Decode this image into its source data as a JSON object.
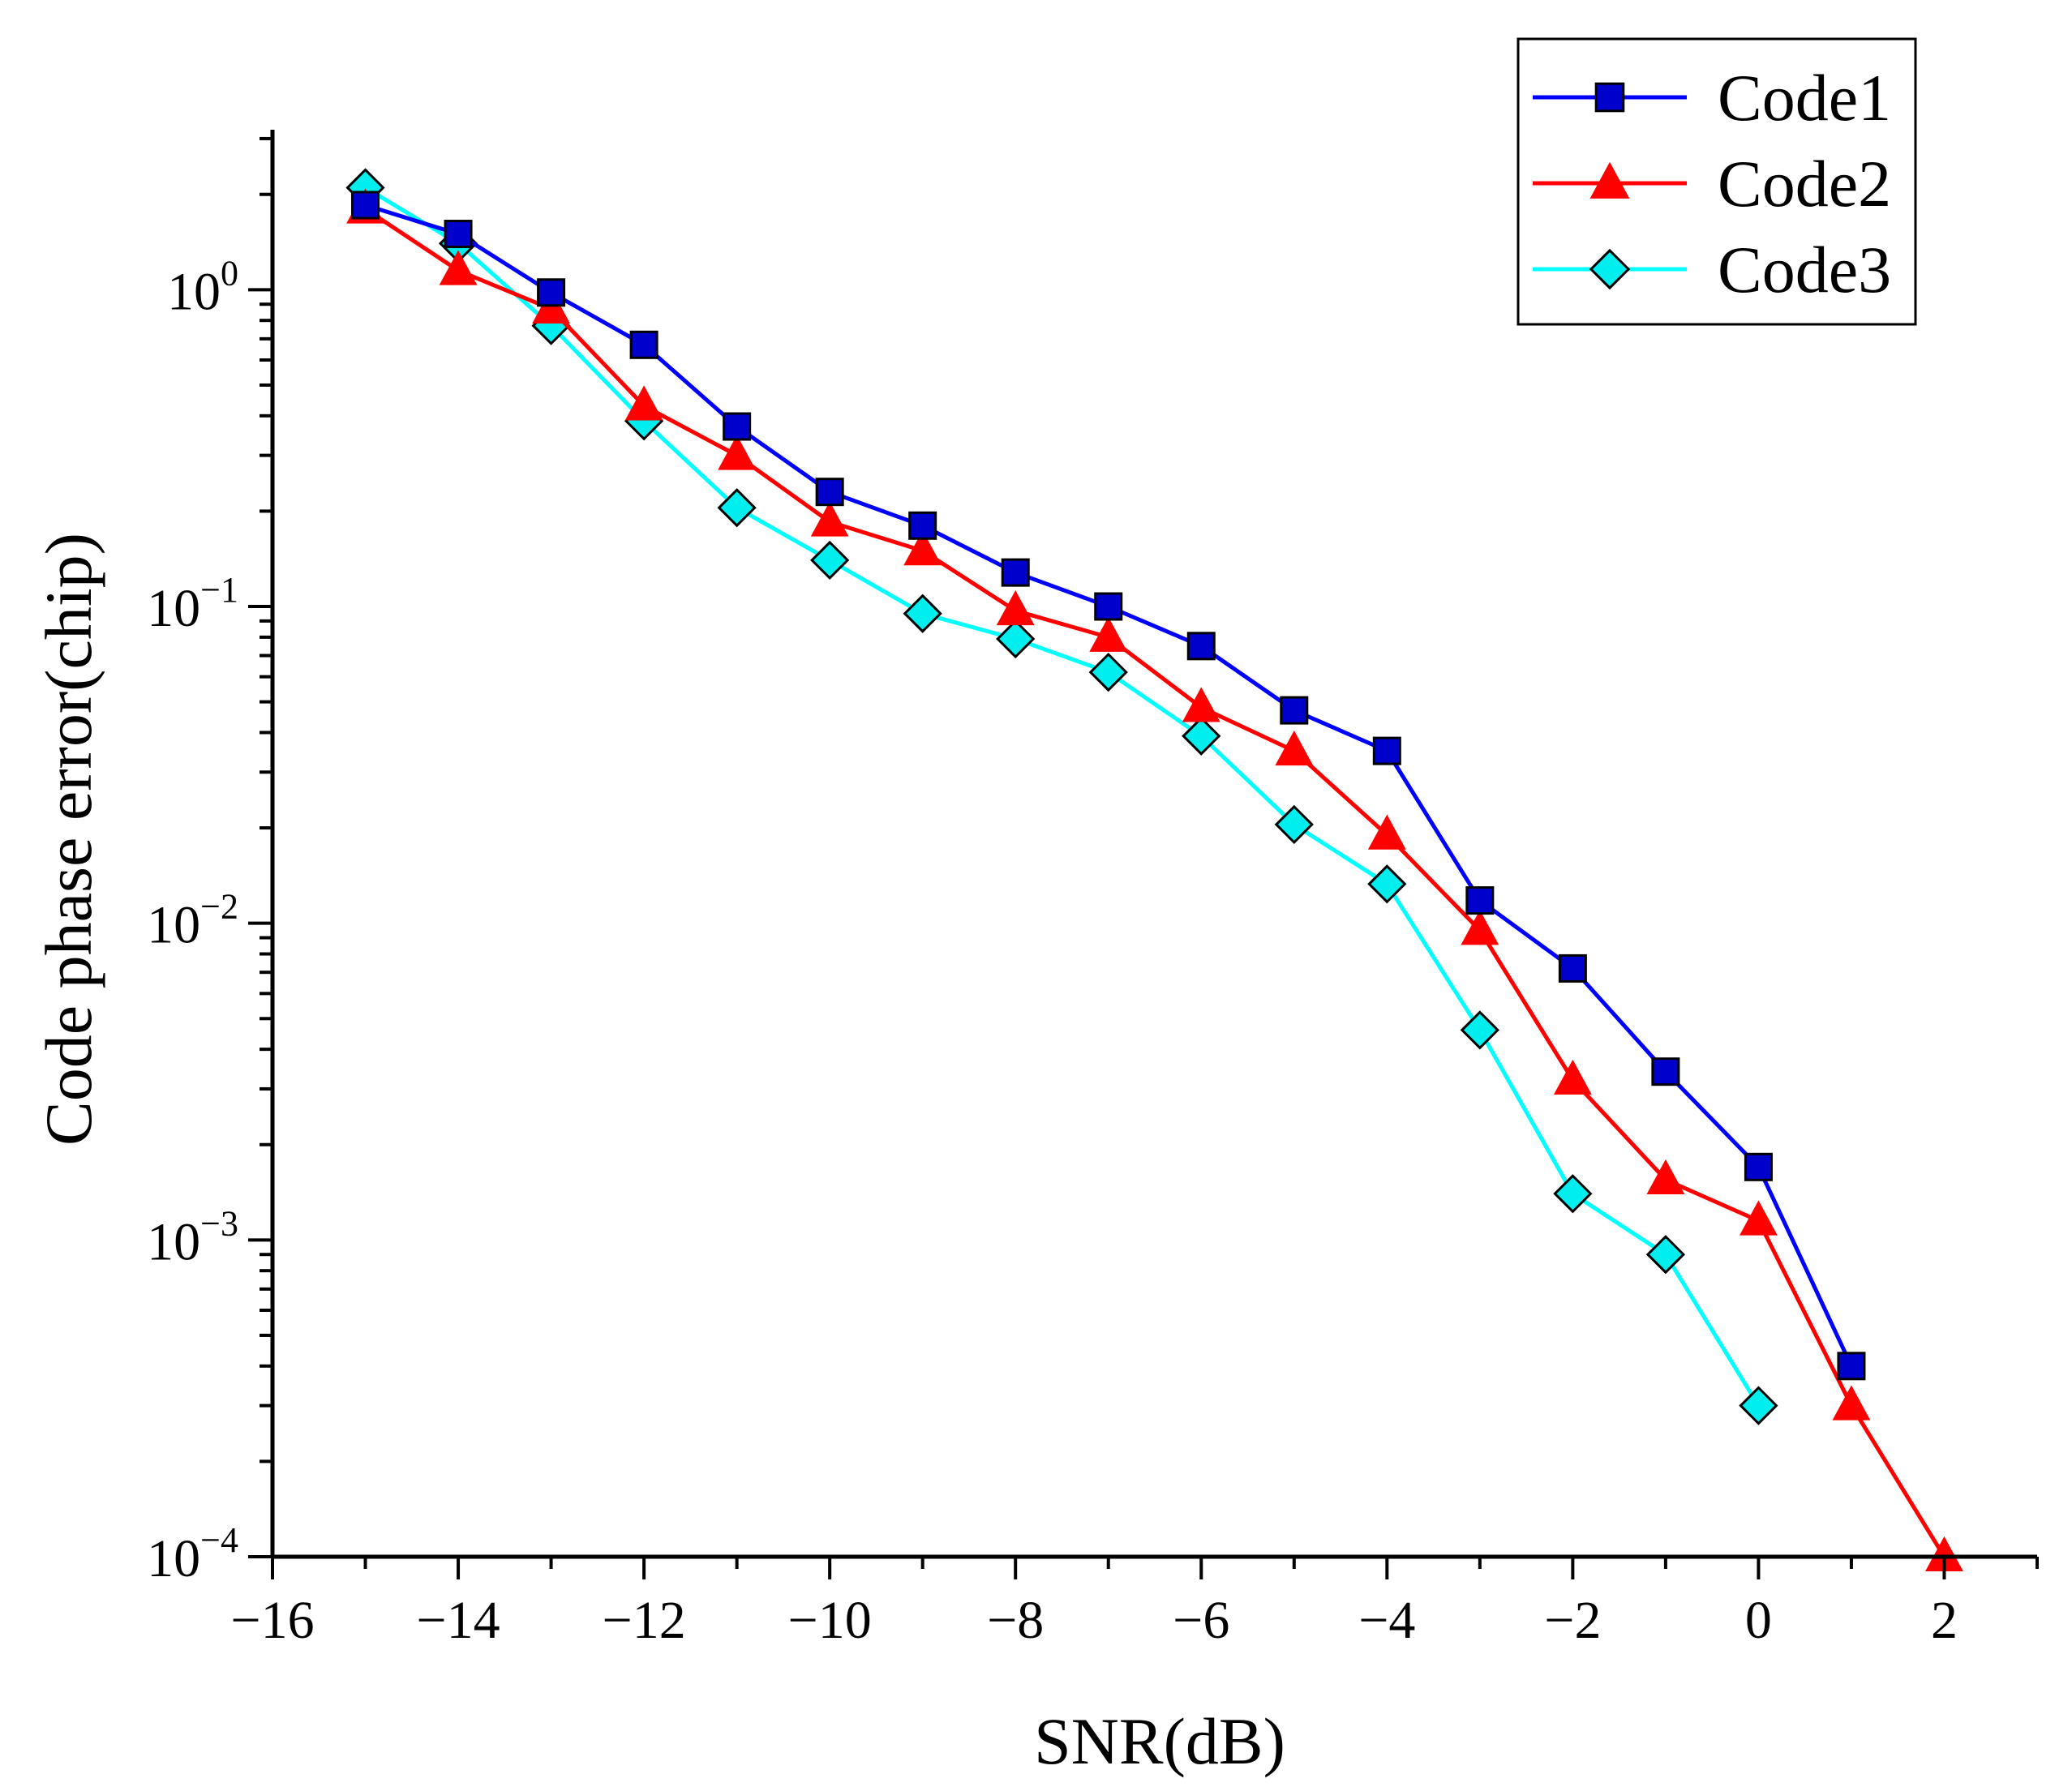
{
  "chart_data": {
    "type": "line",
    "title": "",
    "xlabel": "SNR(dB)",
    "ylabel": "Code phase error(chip)",
    "xlim": [
      -16,
      3
    ],
    "ylim": [
      0.0001,
      3.2
    ],
    "yscale": "log",
    "xticks": [
      -16,
      -14,
      -12,
      -10,
      -8,
      -6,
      -4,
      -2,
      0,
      2
    ],
    "xtick_labels": [
      "−16",
      "−14",
      "−12",
      "−10",
      "−8",
      "−6",
      "−4",
      "−2",
      "0",
      "2"
    ],
    "yticks": [
      {
        "value": 1,
        "base": "10",
        "exp": "0"
      },
      {
        "value": 0.1,
        "base": "10",
        "exp": "−1"
      },
      {
        "value": 0.01,
        "base": "10",
        "exp": "−2"
      },
      {
        "value": 0.001,
        "base": "10",
        "exp": "−3"
      },
      {
        "value": 0.0001,
        "base": "10",
        "exp": "−4"
      }
    ],
    "grid": false,
    "legend_position": "top-right",
    "series": [
      {
        "name": "Code1",
        "color": "#0000ff",
        "marker": "square",
        "marker_fill": "#0000cc",
        "x": [
          -15,
          -14,
          -13,
          -12,
          -11,
          -10,
          -9,
          -8,
          -7,
          -6,
          -5,
          -4,
          -3,
          -2,
          -1,
          0,
          1
        ],
        "y": [
          1.85,
          1.5,
          0.98,
          0.67,
          0.37,
          0.23,
          0.18,
          0.128,
          0.1,
          0.075,
          0.047,
          0.035,
          0.0118,
          0.0072,
          0.0034,
          0.0017,
          0.0004
        ]
      },
      {
        "name": "Code2",
        "color": "#ff0000",
        "marker": "triangle",
        "marker_fill": "#ff0000",
        "x": [
          -15,
          -14,
          -13,
          -12,
          -11,
          -10,
          -9,
          -8,
          -7,
          -6,
          -5,
          -4,
          -3,
          -2,
          -1,
          0,
          1,
          2
        ],
        "y": [
          1.8,
          1.15,
          0.87,
          0.43,
          0.3,
          0.185,
          0.15,
          0.097,
          0.08,
          0.048,
          0.035,
          0.019,
          0.0095,
          0.0032,
          0.00155,
          0.00115,
          0.0003,
          0.0001
        ]
      },
      {
        "name": "Code3",
        "color": "#00ffff",
        "marker": "diamond",
        "marker_fill": "#00eeee",
        "x": [
          -15,
          -14,
          -13,
          -12,
          -11,
          -10,
          -9,
          -8,
          -7,
          -6,
          -5,
          -4,
          -3,
          -2,
          -1,
          0
        ],
        "y": [
          2.1,
          1.4,
          0.77,
          0.385,
          0.205,
          0.14,
          0.095,
          0.079,
          0.062,
          0.039,
          0.0205,
          0.0133,
          0.0046,
          0.0014,
          0.0009,
          0.0003
        ]
      }
    ]
  }
}
